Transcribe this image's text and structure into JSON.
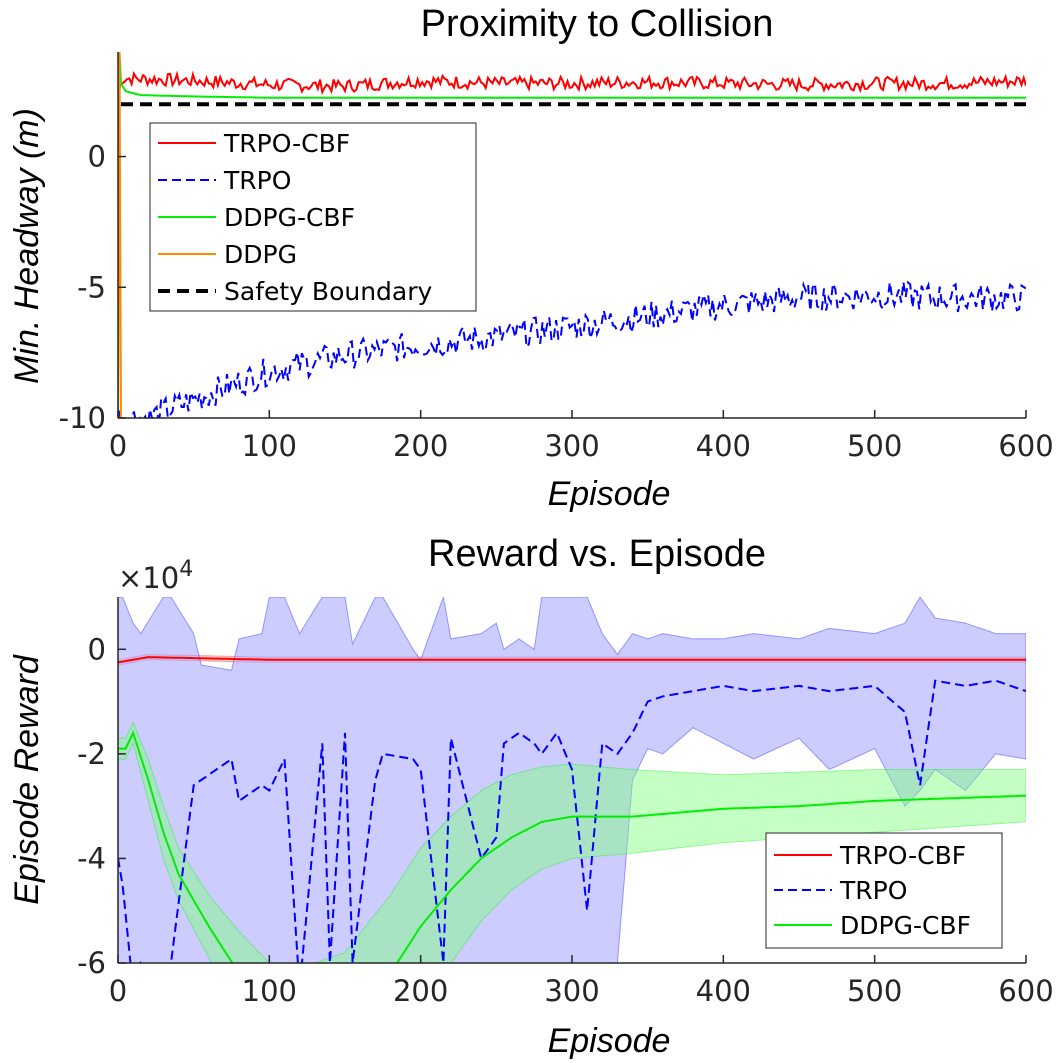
{
  "chart_data": [
    {
      "type": "line",
      "title": "Proximity to Collision",
      "xlabel": "Episode",
      "ylabel": "Min. Headway (m)",
      "xlim": [
        0,
        600
      ],
      "ylim": [
        -10,
        4
      ],
      "xticks": [
        "0",
        "100",
        "200",
        "300",
        "400",
        "500",
        "600"
      ],
      "yticks": [
        "0",
        "-5",
        "-10"
      ],
      "ytick_values": [
        0,
        -5,
        -10
      ],
      "legend_position": "upper-left",
      "series": [
        {
          "name": "TRPO-CBF",
          "color": "#ff0000",
          "style": "solid",
          "x": [
            0,
            2,
            50,
            100,
            150,
            200,
            250,
            300,
            350,
            400,
            450,
            500,
            550,
            600
          ],
          "y": [
            2.1,
            3.0,
            2.9,
            2.75,
            2.7,
            2.9,
            2.8,
            2.8,
            2.85,
            2.8,
            2.75,
            2.8,
            2.8,
            2.9
          ],
          "noise": 0.25
        },
        {
          "name": "TRPO",
          "color": "#0000ff",
          "style": "dashed",
          "x": [
            0,
            20,
            50,
            100,
            150,
            200,
            250,
            300,
            350,
            400,
            450,
            500,
            550,
            600
          ],
          "y": [
            -10,
            -10,
            -9.3,
            -8.2,
            -7.6,
            -7.2,
            -6.9,
            -6.5,
            -6.1,
            -5.7,
            -5.4,
            -5.3,
            -5.4,
            -5.4
          ],
          "noise": 0.55
        },
        {
          "name": "DDPG-CBF",
          "color": "#00ee00",
          "style": "solid",
          "x": [
            0,
            1,
            2,
            5,
            15,
            50,
            100,
            200,
            300,
            400,
            500,
            600
          ],
          "y": [
            -10,
            4.0,
            2.8,
            2.5,
            2.35,
            2.3,
            2.25,
            2.25,
            2.25,
            2.25,
            2.25,
            2.25
          ],
          "noise": 0
        },
        {
          "name": "DDPG",
          "color": "#ff8c00",
          "style": "solid",
          "x": [
            0,
            1,
            2,
            3
          ],
          "y": [
            -10,
            4.0,
            -10,
            -10
          ],
          "noise": 0
        },
        {
          "name": "Safety Boundary",
          "color": "#000000",
          "style": "dashed-thick",
          "x": [
            2,
            600
          ],
          "y": [
            2,
            2
          ],
          "noise": 0
        }
      ]
    },
    {
      "type": "line",
      "title": "Reward vs. Episode",
      "xlabel": "Episode",
      "ylabel": "Episode Reward",
      "multiplier": "×10",
      "multiplier_exp": "4",
      "xlim": [
        0,
        600
      ],
      "ylim": [
        -6,
        1
      ],
      "xticks": [
        "0",
        "100",
        "200",
        "300",
        "400",
        "500",
        "600"
      ],
      "yticks": [
        "0",
        "-2",
        "-4",
        "-6"
      ],
      "ytick_values": [
        0,
        -2,
        -4,
        -6
      ],
      "legend_position": "lower-right",
      "series": [
        {
          "name": "TRPO-CBF",
          "color": "#ff0000",
          "style": "solid",
          "x": [
            0,
            10,
            20,
            100,
            200,
            300,
            400,
            500,
            600
          ],
          "y": [
            -0.25,
            -0.2,
            -0.15,
            -0.2,
            -0.2,
            -0.2,
            -0.2,
            -0.2,
            -0.2
          ],
          "band_low": [
            -0.3,
            -0.25,
            -0.2,
            -0.25,
            -0.25,
            -0.25,
            -0.25,
            -0.25,
            -0.25
          ],
          "band_high": [
            -0.2,
            -0.15,
            -0.1,
            -0.15,
            -0.15,
            -0.15,
            -0.15,
            -0.15,
            -0.15
          ]
        },
        {
          "name": "TRPO",
          "color": "#0000ff",
          "style": "dashed",
          "x": [
            0,
            3,
            10,
            15,
            30,
            35,
            50,
            55,
            75,
            80,
            95,
            100,
            110,
            120,
            135,
            140,
            150,
            155,
            170,
            175,
            195,
            200,
            215,
            220,
            240,
            250,
            255,
            265,
            275,
            280,
            290,
            300,
            310,
            320,
            330,
            340,
            350,
            360,
            380,
            400,
            420,
            450,
            470,
            500,
            520,
            530,
            540,
            560,
            580,
            600
          ],
          "y": [
            -4.0,
            -4.5,
            -6.5,
            -6.0,
            -6.5,
            -6.0,
            -2.6,
            -2.5,
            -2.1,
            -2.9,
            -2.6,
            -2.7,
            -2.1,
            -6.5,
            -1.8,
            -6.0,
            -1.6,
            -6.0,
            -2.5,
            -2.0,
            -2.1,
            -2.3,
            -6.0,
            -1.7,
            -4.0,
            -3.6,
            -1.8,
            -1.6,
            -1.8,
            -2.0,
            -1.6,
            -2.3,
            -5.0,
            -1.8,
            -2.0,
            -1.6,
            -1.0,
            -0.9,
            -0.8,
            -0.7,
            -0.8,
            -0.7,
            -0.8,
            -0.7,
            -1.2,
            -2.6,
            -0.6,
            -0.7,
            -0.6,
            -0.8
          ],
          "band_low": [
            -6,
            -6,
            -6,
            -6,
            -6,
            -6,
            -6,
            -6,
            -6,
            -6,
            -6,
            -6,
            -6,
            -6,
            -6,
            -6,
            -6,
            -6,
            -6,
            -6,
            -6,
            -6,
            -6,
            -6,
            -6,
            -6,
            -6,
            -6,
            -6,
            -6,
            -6,
            -6,
            -6,
            -6,
            -6,
            -2.5,
            -1.9,
            -2.0,
            -1.5,
            -1.8,
            -2.1,
            -1.7,
            -2.3,
            -1.9,
            -3.0,
            -2.7,
            -2.3,
            -2.7,
            -2.0,
            -2.1
          ],
          "band_high": [
            1,
            1,
            0.5,
            0.3,
            1,
            1,
            0.3,
            -0.3,
            -0.4,
            0.2,
            0.3,
            1,
            1,
            0.3,
            1,
            1,
            1,
            0.1,
            1,
            1,
            0.0,
            -0.2,
            1,
            0.2,
            0.3,
            0.5,
            0.0,
            0.2,
            0.0,
            1,
            1,
            1,
            1,
            0.3,
            -0.1,
            0.3,
            0.2,
            0.3,
            0.2,
            0.2,
            0.3,
            0.2,
            0.4,
            0.3,
            0.5,
            1,
            0.6,
            0.5,
            0.3,
            0.3
          ]
        },
        {
          "name": "DDPG-CBF",
          "color": "#00ee00",
          "style": "solid",
          "x": [
            0,
            5,
            10,
            20,
            30,
            40,
            60,
            80,
            100,
            120,
            150,
            180,
            200,
            220,
            240,
            260,
            280,
            300,
            340,
            400,
            450,
            500,
            550,
            600
          ],
          "y": [
            -1.9,
            -1.9,
            -1.6,
            -2.5,
            -3.5,
            -4.3,
            -5.3,
            -6.2,
            -7.0,
            -7.4,
            -7.6,
            -6.2,
            -5.3,
            -4.6,
            -4.0,
            -3.6,
            -3.3,
            -3.2,
            -3.2,
            -3.05,
            -3.0,
            -2.9,
            -2.85,
            -2.8
          ],
          "band_low": [
            -2.1,
            -2.1,
            -1.8,
            -2.9,
            -4.0,
            -4.8,
            -5.9,
            -7.0,
            -8,
            -8,
            -8,
            -7.5,
            -6.7,
            -6.0,
            -5.2,
            -4.6,
            -4.2,
            -4.0,
            -3.9,
            -3.7,
            -3.6,
            -3.5,
            -3.4,
            -3.3
          ],
          "band_high": [
            -1.7,
            -1.7,
            -1.4,
            -2.1,
            -3.0,
            -3.8,
            -4.7,
            -5.4,
            -6.0,
            -6.1,
            -5.8,
            -4.7,
            -3.8,
            -3.2,
            -2.7,
            -2.4,
            -2.25,
            -2.2,
            -2.3,
            -2.4,
            -2.35,
            -2.3,
            -2.3,
            -2.3
          ]
        }
      ]
    }
  ]
}
